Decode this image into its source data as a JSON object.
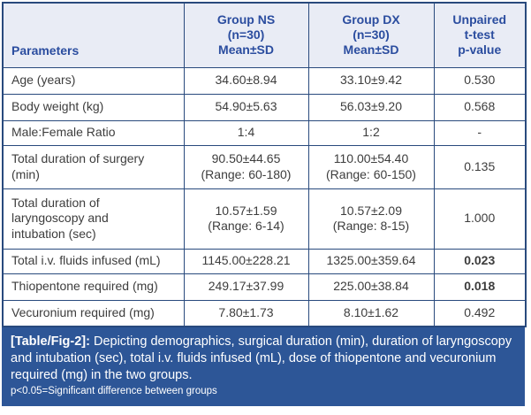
{
  "colors": {
    "border_navy": "#294a7d",
    "header_bg": "#e9ecf5",
    "header_text_blue": "#2b4d9f",
    "body_text": "#3d3d3d",
    "footer_bg": "#2d5697",
    "footer_text": "#ffffff"
  },
  "table": {
    "headers": {
      "parameters": "Parameters",
      "group_ns": "Group NS\n(n=30)\nMean±SD",
      "group_dx": "Group DX\n(n=30)\nMean±SD",
      "p_value": "Unpaired\nt-test\np-value"
    },
    "rows": [
      {
        "parameter": "Age (years)",
        "group_ns": "34.60±8.94",
        "group_dx": "33.10±9.42",
        "p_value": "0.530",
        "significant": false
      },
      {
        "parameter": "Body weight (kg)",
        "group_ns": "54.90±5.63",
        "group_dx": "56.03±9.20",
        "p_value": "0.568",
        "significant": false
      },
      {
        "parameter": "Male:Female Ratio",
        "group_ns": "1:4",
        "group_dx": "1:2",
        "p_value": "-",
        "significant": false
      },
      {
        "parameter": "Total duration of surgery\n(min)",
        "group_ns": "90.50±44.65\n(Range: 60-180)",
        "group_dx": "110.00±54.40\n(Range: 60-150)",
        "p_value": "0.135",
        "significant": false
      },
      {
        "parameter": "Total duration of\nlaryngoscopy and\nintubation (sec)",
        "group_ns": "10.57±1.59\n(Range: 6-14)",
        "group_dx": "10.57±2.09\n(Range: 8-15)",
        "p_value": "1.000",
        "significant": false
      },
      {
        "parameter": "Total i.v. fluids infused (mL)",
        "group_ns": "1145.00±228.21",
        "group_dx": "1325.00±359.64",
        "p_value": "0.023",
        "significant": true
      },
      {
        "parameter": "Thiopentone required (mg)",
        "group_ns": "249.17±37.99",
        "group_dx": "225.00±38.84",
        "p_value": "0.018",
        "significant": true
      },
      {
        "parameter": "Vecuronium required (mg)",
        "group_ns": "7.80±1.73",
        "group_dx": "8.10±1.62",
        "p_value": "0.492",
        "significant": false
      }
    ]
  },
  "footer": {
    "label": "[Table/Fig-2]:",
    "caption": " Depicting demographics, surgical duration (min), duration of laryngoscopy and intubation (sec), total i.v. fluids infused (mL), dose of thiopentone and vecuronium required (mg) in the two groups.",
    "note": "p<0.05=Significant difference between groups"
  }
}
